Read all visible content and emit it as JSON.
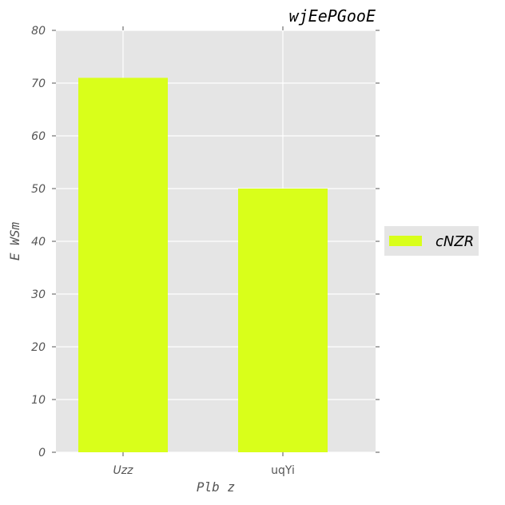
{
  "chart_data": {
    "type": "bar",
    "title": "wjEePGooE",
    "xlabel": "Plb z",
    "ylabel": "E WSm",
    "categories": [
      "Uzz",
      "uqYi"
    ],
    "series": [
      {
        "name": "cNZR",
        "values": [
          71,
          50
        ],
        "color": "#d9ff1a"
      }
    ],
    "ylim": [
      0,
      80
    ],
    "yticks": [
      "0",
      "10",
      "20",
      "30",
      "40",
      "50",
      "60",
      "70",
      "80"
    ],
    "grid": true,
    "legend_position": "right"
  }
}
